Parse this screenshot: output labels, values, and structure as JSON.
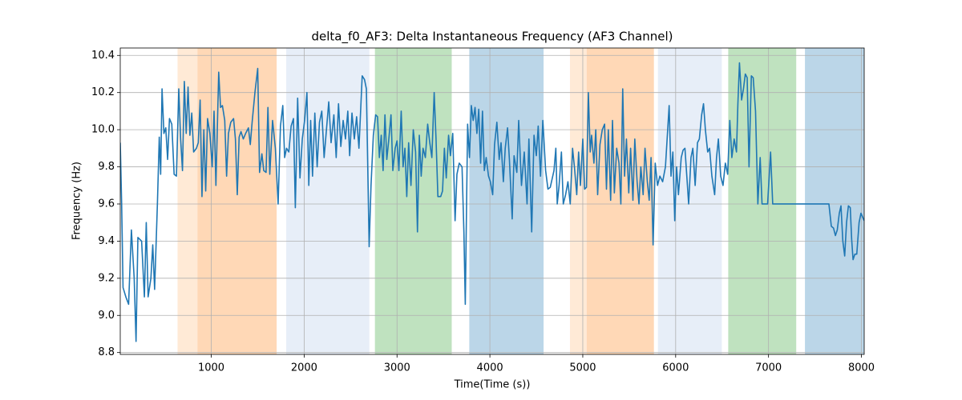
{
  "chart_data": {
    "type": "line",
    "title": "delta_f0_AF3: Delta Instantaneous Frequency (AF3 Channel)",
    "xlabel": "Time(Time (s))",
    "ylabel": "Frequency (Hz)",
    "color": "#1f77b4",
    "grid": true,
    "xlim": [
      20,
      8030
    ],
    "ylim": [
      8.79,
      10.44
    ],
    "xticks": [
      1000,
      2000,
      3000,
      4000,
      5000,
      6000,
      7000,
      8000
    ],
    "yticks": [
      8.8,
      {
        "value": 9.0,
        "label": "9.0"
      },
      9.2,
      9.4,
      9.6,
      9.8,
      {
        "value": 10.0,
        "label": "10.0"
      },
      10.2,
      10.4
    ],
    "spans": [
      {
        "start": 637,
        "end": 852,
        "color": "#ffbb78"
      },
      {
        "start": 852,
        "end": 1704,
        "color": "#ff7f0e"
      },
      {
        "start": 1807,
        "end": 2702,
        "color": "#aec7e8"
      },
      {
        "start": 2762,
        "end": 3589,
        "color": "#2ca02c"
      },
      {
        "start": 3778,
        "end": 4578,
        "color": "#1f77b4"
      },
      {
        "start": 4862,
        "end": 5043,
        "color": "#ffbb78"
      },
      {
        "start": 5043,
        "end": 5766,
        "color": "#ff7f0e"
      },
      {
        "start": 5809,
        "end": 6497,
        "color": "#aec7e8"
      },
      {
        "start": 6566,
        "end": 7298,
        "color": "#2ca02c"
      },
      {
        "start": 7392,
        "end": 8030,
        "color": "#1f77b4"
      }
    ],
    "x": [
      20,
      35,
      50,
      80,
      110,
      140,
      170,
      190,
      210,
      250,
      280,
      300,
      320,
      350,
      370,
      390,
      420,
      440,
      455,
      470,
      490,
      510,
      530,
      550,
      575,
      600,
      625,
      650,
      670,
      690,
      710,
      730,
      750,
      770,
      790,
      810,
      840,
      860,
      880,
      900,
      920,
      940,
      960,
      985,
      1010,
      1030,
      1050,
      1080,
      1100,
      1120,
      1145,
      1165,
      1185,
      1210,
      1240,
      1260,
      1280,
      1300,
      1320,
      1345,
      1370,
      1400,
      1420,
      1440,
      1470,
      1500,
      1520,
      1545,
      1565,
      1590,
      1610,
      1630,
      1660,
      1690,
      1720,
      1745,
      1770,
      1790,
      1810,
      1835,
      1860,
      1885,
      1905,
      1930,
      1955,
      1980,
      2005,
      2030,
      2050,
      2070,
      2090,
      2115,
      2140,
      2165,
      2190,
      2215,
      2240,
      2265,
      2290,
      2320,
      2345,
      2370,
      2395,
      2420,
      2445,
      2470,
      2490,
      2515,
      2540,
      2565,
      2590,
      2625,
      2650,
      2670,
      2700,
      2720,
      2745,
      2770,
      2790,
      2810,
      2830,
      2850,
      2870,
      2890,
      2910,
      2935,
      2955,
      2980,
      3000,
      3020,
      3045,
      3065,
      3085,
      3105,
      3125,
      3150,
      3175,
      3200,
      3220,
      3240,
      3260,
      3280,
      3305,
      3330,
      3350,
      3375,
      3400,
      3420,
      3440,
      3470,
      3490,
      3510,
      3530,
      3555,
      3575,
      3600,
      3625,
      3645,
      3670,
      3700,
      3720,
      3735,
      3760,
      3780,
      3800,
      3820,
      3840,
      3860,
      3880,
      3900,
      3920,
      3940,
      3960,
      3985,
      4005,
      4030,
      4050,
      4075,
      4100,
      4120,
      4145,
      4165,
      4190,
      4210,
      4240,
      4260,
      4290,
      4310,
      4340,
      4370,
      4400,
      4420,
      4450,
      4475,
      4500,
      4520,
      4545,
      4570,
      4600,
      4625,
      4650,
      4690,
      4710,
      4725,
      4745,
      4770,
      4790,
      4815,
      4840,
      4865,
      4890,
      4910,
      4935,
      4955,
      4975,
      5000,
      5020,
      5040,
      5060,
      5080,
      5095,
      5120,
      5140,
      5160,
      5185,
      5210,
      5235,
      5255,
      5275,
      5300,
      5320,
      5340,
      5365,
      5390,
      5410,
      5430,
      5450,
      5470,
      5495,
      5515,
      5540,
      5560,
      5585,
      5605,
      5625,
      5650,
      5670,
      5695,
      5715,
      5735,
      5757,
      5780,
      5805,
      5830,
      5860,
      5890,
      5930,
      5950,
      5970,
      5990,
      6010,
      6030,
      6060,
      6080,
      6100,
      6120,
      6140,
      6165,
      6185,
      6210,
      6235,
      6255,
      6280,
      6300,
      6320,
      6345,
      6365,
      6390,
      6420,
      6440,
      6460,
      6485,
      6510,
      6535,
      6560,
      6583,
      6605,
      6630,
      6655,
      6670,
      6687,
      6710,
      6730,
      6750,
      6770,
      6790,
      6815,
      6835,
      6860,
      6885,
      6910,
      6930,
      6960,
      6990,
      7022,
      7045,
      7100,
      7200,
      7300,
      7400,
      7500,
      7600,
      7650,
      7676,
      7700,
      7720,
      7740,
      7762,
      7780,
      7800,
      7820,
      7840,
      7860,
      7880,
      7895,
      7910,
      7930,
      7950,
      7975,
      7995,
      8030
    ],
    "values": [
      9.93,
      9.6,
      9.15,
      9.1,
      9.06,
      9.46,
      9.2,
      8.86,
      9.42,
      9.4,
      9.1,
      9.5,
      9.1,
      9.2,
      9.38,
      9.14,
      9.6,
      9.96,
      9.76,
      10.22,
      9.98,
      10.01,
      9.84,
      10.06,
      10.03,
      9.76,
      9.75,
      10.22,
      9.95,
      9.78,
      10.26,
      9.98,
      10.23,
      9.97,
      10.09,
      9.88,
      9.9,
      9.93,
      10.16,
      9.64,
      10.0,
      9.67,
      10.06,
      9.98,
      9.8,
      10.1,
      9.7,
      10.31,
      10.12,
      10.13,
      10.05,
      9.75,
      9.98,
      10.04,
      10.06,
      9.95,
      9.65,
      9.96,
      9.99,
      9.95,
      9.98,
      10.01,
      9.92,
      10.04,
      10.2,
      10.33,
      9.77,
      9.87,
      9.78,
      9.77,
      10.12,
      9.76,
      10.05,
      9.9,
      9.6,
      10.02,
      10.13,
      9.85,
      9.9,
      9.88,
      10.02,
      10.06,
      9.58,
      10.17,
      9.74,
      9.95,
      10.05,
      10.2,
      9.7,
      10.05,
      9.75,
      10.09,
      9.8,
      10.04,
      10.1,
      9.85,
      10.0,
      10.15,
      9.93,
      10.08,
      9.85,
      10.14,
      9.91,
      10.05,
      9.95,
      10.1,
      9.86,
      10.09,
      9.95,
      10.07,
      9.9,
      10.29,
      10.27,
      10.22,
      9.37,
      9.7,
      9.97,
      10.08,
      10.07,
      9.85,
      9.97,
      9.78,
      10.08,
      9.84,
      9.94,
      10.08,
      9.78,
      9.9,
      9.94,
      9.78,
      10.1,
      9.8,
      9.9,
      9.64,
      9.93,
      9.7,
      10.0,
      9.88,
      9.45,
      9.97,
      9.75,
      9.9,
      9.85,
      10.03,
      9.94,
      9.85,
      10.2,
      9.95,
      9.64,
      9.64,
      9.67,
      9.9,
      9.74,
      9.97,
      9.86,
      9.98,
      9.51,
      9.76,
      9.82,
      9.8,
      9.45,
      9.06,
      10.03,
      9.85,
      10.13,
      10.05,
      10.12,
      9.98,
      10.11,
      9.82,
      10.1,
      9.78,
      9.85,
      9.75,
      9.72,
      9.65,
      9.92,
      10.04,
      9.84,
      9.93,
      9.72,
      9.9,
      10.01,
      9.84,
      9.52,
      9.86,
      9.77,
      10.05,
      9.7,
      9.88,
      9.6,
      9.95,
      9.45,
      9.97,
      9.86,
      10.02,
      9.75,
      10.05,
      9.78,
      9.68,
      9.69,
      9.78,
      9.9,
      9.6,
      9.7,
      9.88,
      9.6,
      9.65,
      9.72,
      9.6,
      9.9,
      9.8,
      9.65,
      9.88,
      9.7,
      9.95,
      9.68,
      9.69,
      10.2,
      9.88,
      9.97,
      9.82,
      10.0,
      9.65,
      9.92,
      10.0,
      10.03,
      9.68,
      10.0,
      9.62,
      10.05,
      9.66,
      9.9,
      9.82,
      9.6,
      10.22,
      9.75,
      9.95,
      9.66,
      9.9,
      9.62,
      9.95,
      9.72,
      9.6,
      9.8,
      9.65,
      9.9,
      9.72,
      9.62,
      9.85,
      9.38,
      9.82,
      9.7,
      9.75,
      9.72,
      9.8,
      10.13,
      9.75,
      9.88,
      9.51,
      9.8,
      9.65,
      9.85,
      9.89,
      9.9,
      9.75,
      9.6,
      9.85,
      9.9,
      9.7,
      9.93,
      9.95,
      10.08,
      10.14,
      10.0,
      9.88,
      9.9,
      9.75,
      9.65,
      9.85,
      9.95,
      9.75,
      9.7,
      9.82,
      9.76,
      10.05,
      9.85,
      9.95,
      9.88,
      10.14,
      10.36,
      10.16,
      10.22,
      10.3,
      10.28,
      9.8,
      10.29,
      10.28,
      10.1,
      9.6,
      9.85,
      9.6,
      9.6,
      9.6,
      9.88,
      9.6,
      9.6,
      9.6,
      9.6,
      9.6,
      9.6,
      9.6,
      9.6,
      9.48,
      9.47,
      9.43,
      9.46,
      9.55,
      9.59,
      9.4,
      9.32,
      9.5,
      9.59,
      9.58,
      9.41,
      9.3,
      9.33,
      9.33,
      9.5,
      9.55,
      9.51
    ]
  }
}
